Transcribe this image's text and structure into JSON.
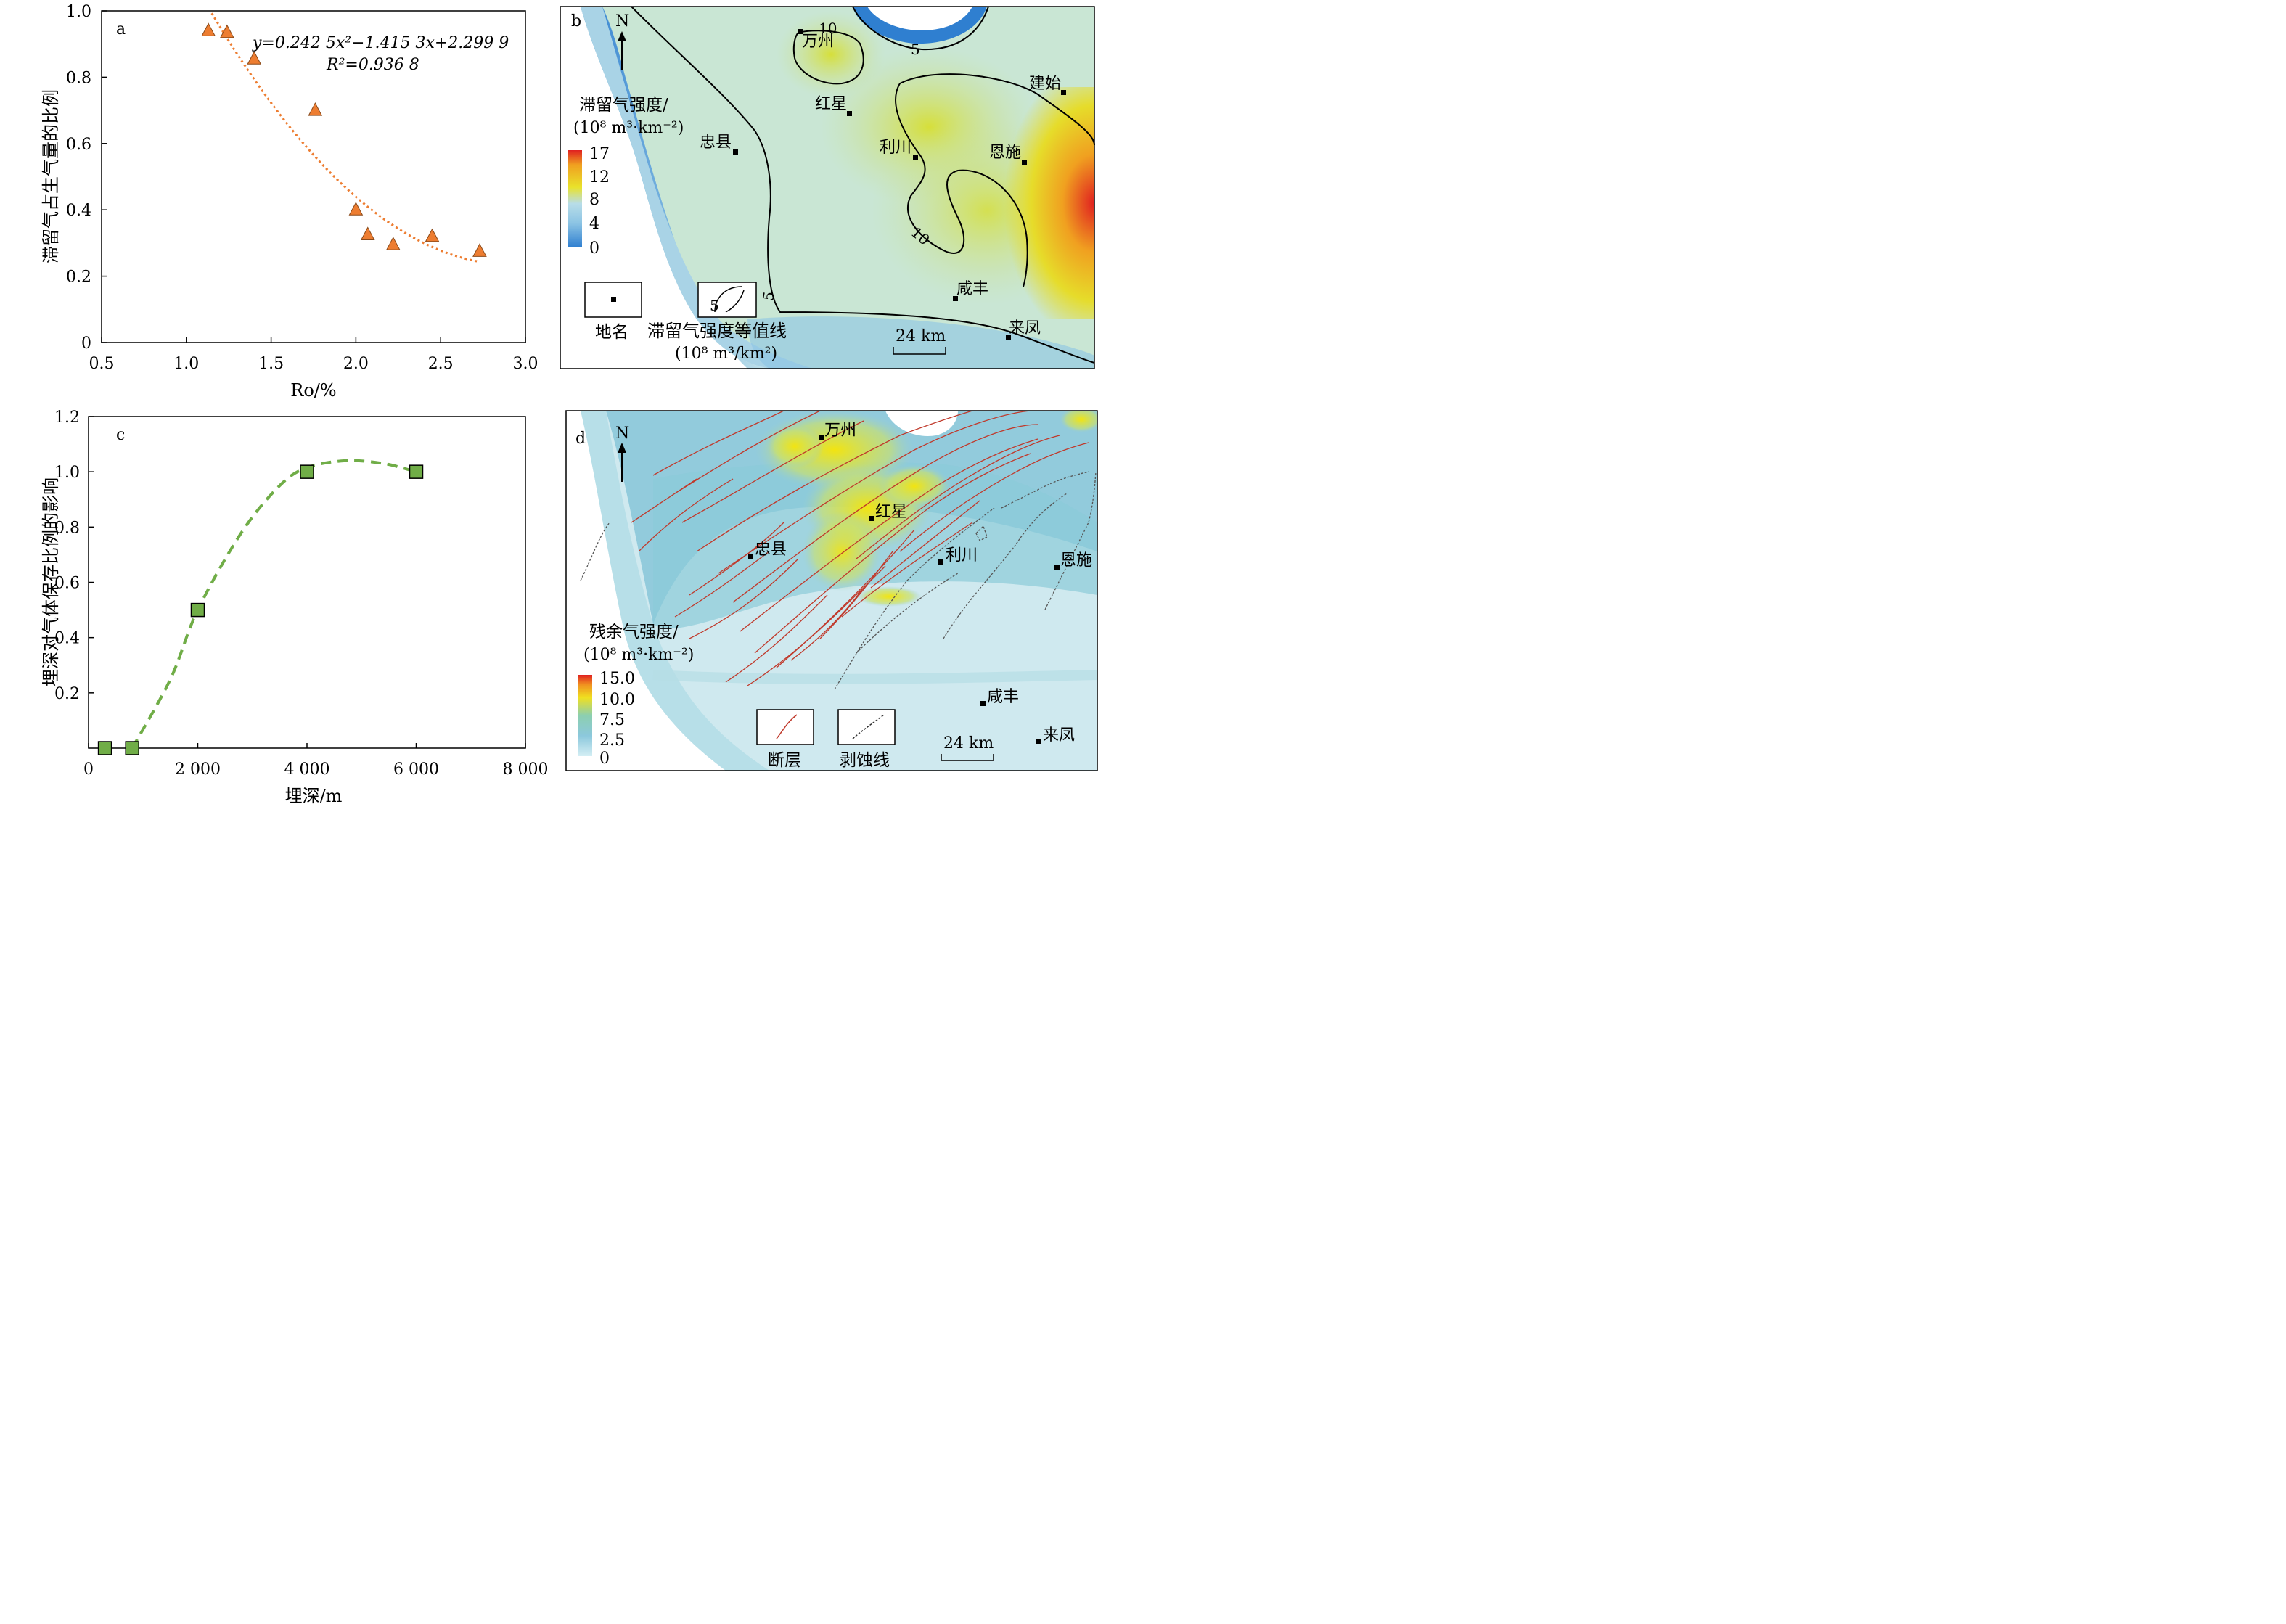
{
  "colors": {
    "triangle": "#ed7d31",
    "square": "#70ad47",
    "fault": "#c0392b",
    "map_low": "#2f7fd0",
    "map_mid": "#b8dde8",
    "map_high": "#e9e22a",
    "map_peak": "#e02020"
  },
  "chart_data": [
    {
      "panel": "a",
      "type": "scatter",
      "xlabel": "Ro/%",
      "ylabel": "滞留气占生气量的比例",
      "xlim": [
        0.5,
        3.0
      ],
      "ylim": [
        0,
        1.0
      ],
      "xticks": [
        "0.5",
        "1.0",
        "1.5",
        "2.0",
        "2.5",
        "3.0"
      ],
      "yticks": [
        "0",
        "0.2",
        "0.4",
        "0.6",
        "0.8",
        "1.0"
      ],
      "points": [
        {
          "x": 1.13,
          "y": 0.94
        },
        {
          "x": 1.24,
          "y": 0.935
        },
        {
          "x": 1.4,
          "y": 0.855
        },
        {
          "x": 1.76,
          "y": 0.7
        },
        {
          "x": 2.0,
          "y": 0.4
        },
        {
          "x": 2.07,
          "y": 0.325
        },
        {
          "x": 2.22,
          "y": 0.295
        },
        {
          "x": 2.45,
          "y": 0.32
        },
        {
          "x": 2.73,
          "y": 0.275
        }
      ],
      "trend": {
        "a": 0.2425,
        "b": -1.4153,
        "c": 2.2999,
        "x_range": [
          1.15,
          2.73
        ]
      },
      "equation": "y=0.242 5x²−1.415 3x+2.299 9",
      "r2": "R²=0.936 8",
      "grid": false
    },
    {
      "panel": "c",
      "type": "scatter",
      "xlabel": "埋深/m",
      "ylabel": "埋深对气体保存比例的影响",
      "xlim": [
        0,
        8000
      ],
      "ylim": [
        0,
        1.2
      ],
      "xticks": [
        "0",
        "2 000",
        "4 000",
        "6 000",
        "8 000"
      ],
      "yticks": [
        "0.2",
        "0.4",
        "0.6",
        "0.8",
        "1.0",
        "1.2"
      ],
      "points": [
        {
          "x": 300,
          "y": 0
        },
        {
          "x": 800,
          "y": 0
        },
        {
          "x": 2000,
          "y": 0.5
        },
        {
          "x": 4000,
          "y": 1.0
        },
        {
          "x": 6000,
          "y": 1.0
        }
      ],
      "trend_points": [
        {
          "x": 800,
          "y": 0
        },
        {
          "x": 1500,
          "y": 0.25
        },
        {
          "x": 2000,
          "y": 0.5
        },
        {
          "x": 2800,
          "y": 0.78
        },
        {
          "x": 3500,
          "y": 0.95
        },
        {
          "x": 4000,
          "y": 1.015
        },
        {
          "x": 4700,
          "y": 1.04
        },
        {
          "x": 5400,
          "y": 1.03
        },
        {
          "x": 6000,
          "y": 1.0
        }
      ],
      "grid": false
    }
  ],
  "map_b": {
    "panel": "b",
    "north": "N",
    "legend_title_1": "滞留气强度/",
    "legend_title_2": "(10⁸ m³·km⁻²)",
    "legend_ticks": [
      "17",
      "12",
      "8",
      "4",
      "0"
    ],
    "legend_place": "地名",
    "legend_contour": "滞留气强度等值线",
    "legend_contour_unit": "(10⁸ m³/km²)",
    "legend_contour_num": "5",
    "scale": "24 km",
    "contour_labels": [
      "10",
      "5",
      "10",
      "5"
    ],
    "places": [
      "万州",
      "建始",
      "红星",
      "忠县",
      "利川",
      "恩施",
      "咸丰",
      "来凤"
    ]
  },
  "map_d": {
    "panel": "d",
    "north": "N",
    "legend_title_1": "残余气强度/",
    "legend_title_2": "(10⁸ m³·km⁻²)",
    "legend_ticks": [
      "15.0",
      "10.0",
      "7.5",
      "2.5",
      "0"
    ],
    "legend_fault": "断层",
    "legend_erosion": "剥蚀线",
    "scale": "24 km",
    "places": [
      "万州",
      "红星",
      "忠县",
      "利川",
      "恩施",
      "咸丰",
      "来凤"
    ]
  }
}
